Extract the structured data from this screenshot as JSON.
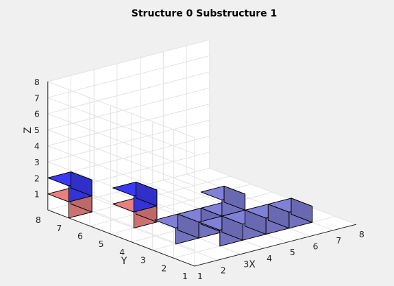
{
  "chart_data": {
    "type": "3d-voxel",
    "title": "Structure 0 Substructure 1",
    "xlabel": "X",
    "ylabel": "Y",
    "zlabel": "Z",
    "xlim": [
      1,
      8
    ],
    "ylim": [
      1,
      8
    ],
    "zlim": [
      0,
      8
    ],
    "xticks": [
      1,
      2,
      3,
      4,
      5,
      6,
      7,
      8
    ],
    "yticks": [
      1,
      2,
      3,
      4,
      5,
      6,
      7,
      8
    ],
    "zticks": [
      1,
      2,
      3,
      4,
      5,
      6,
      7,
      8
    ],
    "grid": true,
    "view": {
      "azimuth": -37.5,
      "elevation": 30
    },
    "series": [
      {
        "color": "#e88080",
        "cubes": [
          {
            "x": 1,
            "y": 7,
            "z": 0
          },
          {
            "x": 2,
            "y": 5,
            "z": 0
          }
        ]
      },
      {
        "color": "#3a3af5",
        "cubes": [
          {
            "x": 1,
            "y": 7,
            "z": 1
          },
          {
            "x": 2,
            "y": 5,
            "z": 1
          }
        ]
      },
      {
        "color": "#8080d8",
        "cubes": [
          {
            "x": 2,
            "y": 3,
            "z": 0
          },
          {
            "x": 3,
            "y": 3,
            "z": 0
          },
          {
            "x": 3,
            "y": 2,
            "z": 0
          },
          {
            "x": 4,
            "y": 3,
            "z": 0
          },
          {
            "x": 4,
            "y": 2,
            "z": 0
          },
          {
            "x": 4,
            "y": 3,
            "z": 1
          },
          {
            "x": 5,
            "y": 2,
            "z": 0
          },
          {
            "x": 6,
            "y": 2,
            "z": 0
          }
        ]
      }
    ]
  }
}
